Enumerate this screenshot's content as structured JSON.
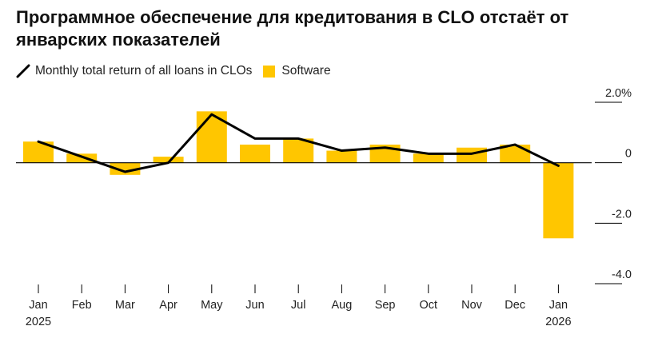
{
  "title": "Программное обеспечение для кредитования в CLO отстаёт от январских показателей",
  "colors": {
    "bar": "#FFC600",
    "line": "#000000",
    "axis": "#000000",
    "grid": "#bfbfbf"
  },
  "legend": [
    {
      "label": "Monthly total return of all loans in CLOs",
      "kind": "line",
      "icon": "black-line-icon"
    },
    {
      "label": "Software",
      "kind": "swatch",
      "icon": "yellow-square-icon"
    }
  ],
  "chart_data": {
    "type": "bar+line",
    "categories": [
      "Jan",
      "Feb",
      "Mar",
      "Apr",
      "May",
      "Jun",
      "Jul",
      "Aug",
      "Sep",
      "Oct",
      "Nov",
      "Dec",
      "Jan"
    ],
    "year_labels": [
      "2025",
      "",
      "",
      "",
      "",
      "",
      "",
      "",
      "",
      "",
      "",
      "",
      "2026"
    ],
    "series": [
      {
        "name": "Software",
        "type": "bar",
        "values": [
          0.7,
          0.3,
          -0.4,
          0.2,
          1.7,
          0.6,
          0.8,
          0.4,
          0.6,
          0.3,
          0.5,
          0.6,
          -2.5
        ]
      },
      {
        "name": "Monthly total return of all loans in CLOs",
        "type": "line",
        "values": [
          0.7,
          0.2,
          -0.3,
          0.0,
          1.6,
          0.8,
          0.8,
          0.4,
          0.5,
          0.3,
          0.3,
          0.6,
          -0.1
        ]
      }
    ],
    "y_ticks": [
      {
        "value": 2.0,
        "label": "2.0%"
      },
      {
        "value": 0,
        "label": "0"
      },
      {
        "value": -2.0,
        "label": "-2.0"
      },
      {
        "value": -4.0,
        "label": "-4.0"
      }
    ],
    "ylim": [
      -4.0,
      2.0
    ],
    "ylabel": "",
    "xlabel": ""
  }
}
